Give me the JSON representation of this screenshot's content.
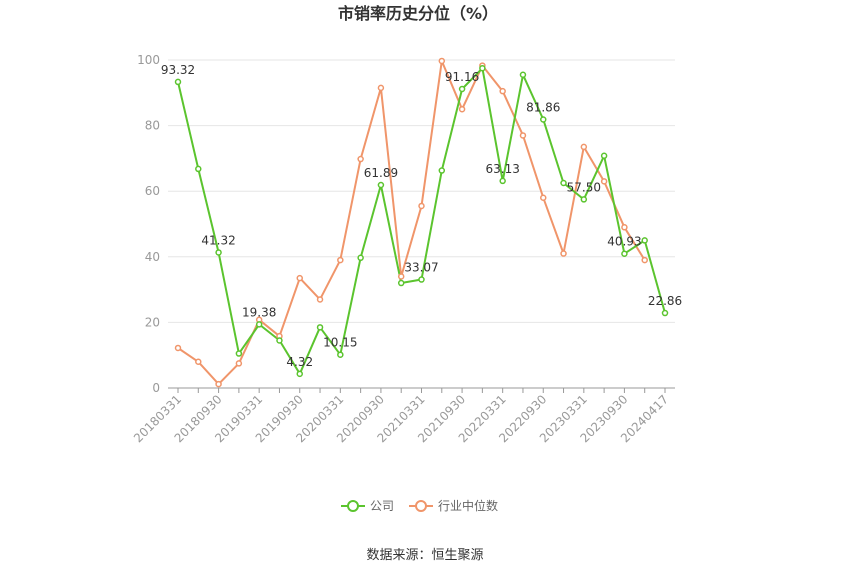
{
  "chart_data": {
    "type": "line",
    "title": "市销率历史分位（%）",
    "source": "数据来源：恒生聚源",
    "ylim": [
      0,
      100
    ],
    "yticks": [
      "0",
      "20",
      "40",
      "60",
      "80",
      "100"
    ],
    "xtick_labels": [
      "20180331",
      "20180930",
      "20190331",
      "20190930",
      "20200331",
      "20200930",
      "20210331",
      "20210930",
      "20220331",
      "20220930",
      "20230331",
      "20230930",
      "20240417"
    ],
    "x": [
      "20180331",
      "20180630",
      "20180930",
      "20181231",
      "20190331",
      "20190630",
      "20190930",
      "20191231",
      "20200331",
      "20200630",
      "20200930",
      "20201231",
      "20210331",
      "20210630",
      "20210930",
      "20211231",
      "20220331",
      "20220630",
      "20220930",
      "20221231",
      "20230331",
      "20230630",
      "20230930",
      "20231231",
      "20240417"
    ],
    "legend_position": "bottom-center",
    "series": [
      {
        "name": "公司",
        "color": "#5bc42e",
        "values": [
          93.32,
          66.8,
          41.32,
          10.5,
          19.38,
          14.5,
          4.32,
          18.5,
          10.15,
          39.7,
          61.89,
          32.0,
          33.07,
          66.3,
          91.16,
          97.5,
          63.13,
          95.5,
          81.86,
          62.5,
          57.5,
          70.8,
          40.93,
          45.0,
          22.86
        ]
      },
      {
        "name": "行业中位数",
        "color": "#f0956a",
        "values": [
          12.2,
          8.0,
          1.2,
          7.5,
          20.8,
          15.8,
          33.5,
          27.0,
          39.0,
          69.8,
          91.5,
          34.0,
          55.5,
          99.7,
          85.0,
          98.3,
          90.5,
          77.0,
          58.0,
          41.0,
          73.5,
          63.0,
          49.0,
          39.0,
          null
        ]
      }
    ],
    "data_labels": [
      {
        "index": 0,
        "text": "93.32"
      },
      {
        "index": 2,
        "text": "41.32"
      },
      {
        "index": 4,
        "text": "19.38"
      },
      {
        "index": 6,
        "text": "4.32"
      },
      {
        "index": 8,
        "text": "10.15"
      },
      {
        "index": 10,
        "text": "61.89"
      },
      {
        "index": 12,
        "text": "33.07"
      },
      {
        "index": 14,
        "text": "91.16"
      },
      {
        "index": 16,
        "text": "63.13"
      },
      {
        "index": 18,
        "text": "81.86"
      },
      {
        "index": 20,
        "text": "57.50"
      },
      {
        "index": 22,
        "text": "40.93"
      },
      {
        "index": 24,
        "text": "22.86"
      }
    ]
  }
}
